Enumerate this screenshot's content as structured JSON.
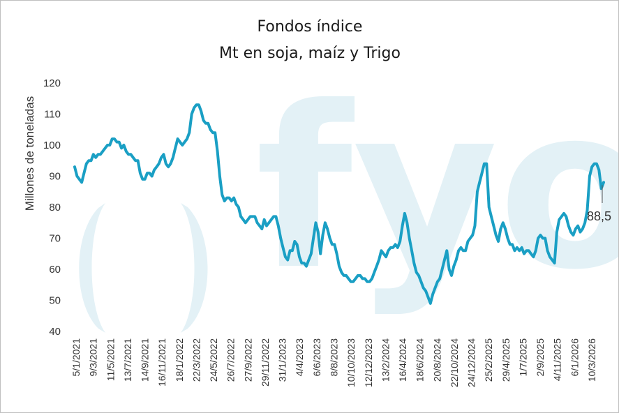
{
  "chart_data": {
    "type": "line",
    "title": "Fondos índice",
    "subtitle": "Mt en soja, maíz y Trigo",
    "ylabel": "Millones de toneladas",
    "xlabel": "",
    "ylim": [
      40,
      120
    ],
    "yticks": [
      40,
      50,
      60,
      70,
      80,
      90,
      100,
      110,
      120
    ],
    "grid": false,
    "legend": "none",
    "line_color": "#1a9fc4",
    "watermark_color": "#e3f1f6",
    "watermark_text": "fyo",
    "x_tick_labels": [
      "5/1/2021",
      "9/3/2021",
      "11/5/2021",
      "13/7/2021",
      "14/9/2021",
      "16/11/2021",
      "18/1/2022",
      "22/3/2022",
      "24/5/2022",
      "26/7/2022",
      "27/9/2022",
      "29/11/2022",
      "31/1/2023",
      "4/4/2023",
      "6/6/2023",
      "8/8/2023",
      "10/10/2023",
      "12/12/2023",
      "13/2/2024",
      "16/4/2024",
      "18/6/2024",
      "20/8/2024",
      "22/10/2024",
      "24/12/2024",
      "25/2/2025",
      "29/4/2025",
      "1/7/2025",
      "2/9/2025",
      "4/11/2025",
      "6/1/2026",
      "10/3/2026"
    ],
    "end_value_label": "88,5",
    "series": [
      {
        "values": [
          93,
          90,
          89,
          88,
          91,
          94,
          95,
          95,
          97,
          96,
          97,
          97,
          98,
          99,
          100,
          100,
          102,
          102,
          101,
          101,
          99,
          100,
          98,
          97,
          97,
          96,
          95,
          95,
          91,
          89,
          89,
          91,
          91,
          90,
          92,
          93,
          94,
          96,
          97,
          94,
          93,
          94,
          96,
          99,
          102,
          101,
          100,
          101,
          102,
          104,
          110,
          112,
          113,
          113,
          111,
          108,
          107,
          107,
          105,
          104,
          104,
          98,
          90,
          84,
          82,
          83,
          83,
          82,
          83,
          81,
          80,
          77,
          76,
          75,
          76,
          77,
          77,
          77,
          75,
          74,
          73,
          76,
          74,
          75,
          76,
          77,
          77,
          74,
          70,
          67,
          64,
          63,
          66,
          66,
          69,
          68,
          64,
          62,
          62,
          61,
          63,
          65,
          70,
          75,
          72,
          65,
          71,
          75,
          73,
          70,
          68,
          68,
          65,
          61,
          59,
          58,
          58,
          57,
          56,
          56,
          57,
          58,
          58,
          57,
          57,
          56,
          56,
          57,
          59,
          61,
          63,
          66,
          65,
          64,
          66,
          67,
          67,
          68,
          67,
          69,
          74,
          78,
          75,
          70,
          66,
          62,
          59,
          58,
          56,
          54,
          53,
          51,
          49,
          52,
          54,
          56,
          57,
          60,
          63,
          66,
          60,
          58,
          61,
          63,
          66,
          67,
          66,
          66,
          69,
          70,
          71,
          74,
          85,
          88,
          91,
          94,
          94,
          80,
          77,
          74,
          71,
          69,
          73,
          75,
          73,
          70,
          68,
          68,
          66,
          67,
          66,
          67,
          65,
          66,
          66,
          65,
          64,
          66,
          70,
          71,
          70,
          70,
          66,
          64,
          63,
          62,
          72,
          76,
          77,
          78,
          77,
          74,
          72,
          71,
          73,
          74,
          72,
          73,
          75,
          79,
          90,
          93,
          94,
          94,
          92,
          86,
          88
        ]
      }
    ]
  }
}
